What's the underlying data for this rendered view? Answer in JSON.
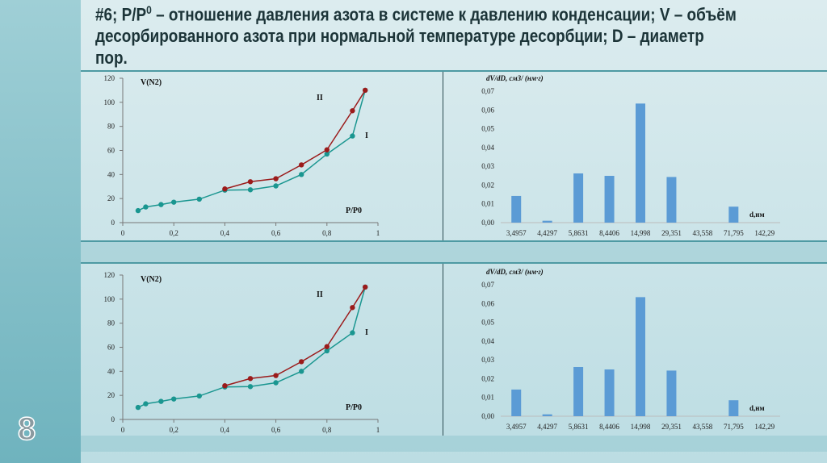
{
  "header": {
    "line1": "#6; P/P",
    "sup": "0",
    "line1_rest": " – отношение давления азота в системе к давлению конденсации; V – объём",
    "line2": "десорбированного азота при нормальной температуре десорбции; D – диаметр",
    "line3": "пор."
  },
  "page_number": "8",
  "colors": {
    "series_I": "#1a9690",
    "series_II": "#9b1b1b",
    "bars": "#5b9bd5"
  },
  "chart_data": [
    {
      "type": "line",
      "ylabel": "V(N2)",
      "xlabel": "P/P0",
      "xlim": [
        0,
        1
      ],
      "ylim": [
        0,
        120
      ],
      "xticks": [
        "0",
        "0,2",
        "0,4",
        "0,6",
        "0,8",
        "1"
      ],
      "yticks": [
        "0",
        "20",
        "40",
        "60",
        "80",
        "100",
        "120"
      ],
      "series": [
        {
          "name": "I",
          "x": [
            0.06,
            0.09,
            0.15,
            0.2,
            0.3,
            0.4,
            0.5,
            0.6,
            0.7,
            0.8,
            0.9,
            0.95
          ],
          "y": [
            10,
            13,
            15,
            17,
            19.5,
            27,
            27.3,
            30.5,
            40,
            57,
            72,
            110
          ]
        },
        {
          "name": "II",
          "x": [
            0.4,
            0.5,
            0.6,
            0.7,
            0.8,
            0.9,
            0.95
          ],
          "y": [
            28,
            34,
            36.5,
            48,
            60.5,
            93,
            110
          ]
        }
      ]
    },
    {
      "type": "bar",
      "ylabel": "dV/dD, см3/ (нм·г)",
      "xlabel": "d,нм",
      "ylim": [
        0,
        0.07
      ],
      "yticks": [
        "0,00",
        "0,01",
        "0,02",
        "0,03",
        "0,04",
        "0,05",
        "0,06",
        "0,07"
      ],
      "categories": [
        "3,4957",
        "4,4297",
        "5,8631",
        "8,4406",
        "14,998",
        "29,351",
        "43,558",
        "71,795",
        "142,29"
      ],
      "values": [
        0.0142,
        0.001,
        0.0262,
        0.0249,
        0.0634,
        0.0243,
        0,
        0.0085,
        0
      ]
    },
    {
      "type": "line",
      "ylabel": "V(N2)",
      "xlabel": "P/P0",
      "xlim": [
        0,
        1
      ],
      "ylim": [
        0,
        120
      ],
      "xticks": [
        "0",
        "0,2",
        "0,4",
        "0,6",
        "0,8",
        "1"
      ],
      "yticks": [
        "0",
        "20",
        "40",
        "60",
        "80",
        "100",
        "120"
      ],
      "series": [
        {
          "name": "I",
          "x": [
            0.06,
            0.09,
            0.15,
            0.2,
            0.3,
            0.4,
            0.5,
            0.6,
            0.7,
            0.8,
            0.9,
            0.95
          ],
          "y": [
            10,
            13,
            15,
            17,
            19.5,
            27,
            27.3,
            30.5,
            40,
            57,
            72,
            110
          ]
        },
        {
          "name": "II",
          "x": [
            0.4,
            0.5,
            0.6,
            0.7,
            0.8,
            0.9,
            0.95
          ],
          "y": [
            28,
            34,
            36.5,
            48,
            60.5,
            93,
            110
          ]
        }
      ]
    },
    {
      "type": "bar",
      "ylabel": "dV/dD, см3/ (нм·г)",
      "xlabel": "d,нм",
      "ylim": [
        0,
        0.07
      ],
      "yticks": [
        "0,00",
        "0,01",
        "0,02",
        "0,03",
        "0,04",
        "0,05",
        "0,06",
        "0,07"
      ],
      "categories": [
        "3,4957",
        "4,4297",
        "5,8631",
        "8,4406",
        "14,998",
        "29,351",
        "43,558",
        "71,795",
        "142,29"
      ],
      "values": [
        0.0142,
        0.001,
        0.0262,
        0.0249,
        0.0634,
        0.0243,
        0,
        0.0085,
        0
      ]
    }
  ]
}
